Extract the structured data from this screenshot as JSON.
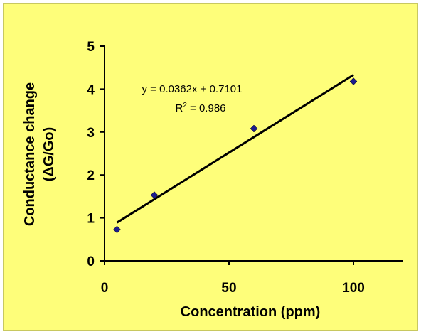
{
  "chart_data": {
    "type": "scatter",
    "xlabel": "Concentration (ppm)",
    "ylabel_line1": "Conductance change",
    "ylabel_line2": "(ΔG/Go)",
    "xlim": [
      0,
      120
    ],
    "ylim": [
      0,
      5
    ],
    "x_ticks": [
      0,
      50,
      100
    ],
    "y_ticks": [
      0,
      1,
      2,
      3,
      4,
      5
    ],
    "grid": false,
    "series": [
      {
        "x": [
          5,
          20,
          60,
          100
        ],
        "y": [
          0.73,
          1.53,
          3.08,
          4.18
        ]
      }
    ],
    "trendline": {
      "slope": 0.0362,
      "intercept": 0.7101,
      "x_range": [
        5,
        100
      ],
      "equation": "y = 0.0362x + 0.7101",
      "r2_prefix": "R",
      "r2_exp": "2",
      "r2_value": " = 0.986"
    },
    "colors": {
      "background": "#fefe7a",
      "marker": "#1c1c8c",
      "line": "#000000"
    }
  }
}
